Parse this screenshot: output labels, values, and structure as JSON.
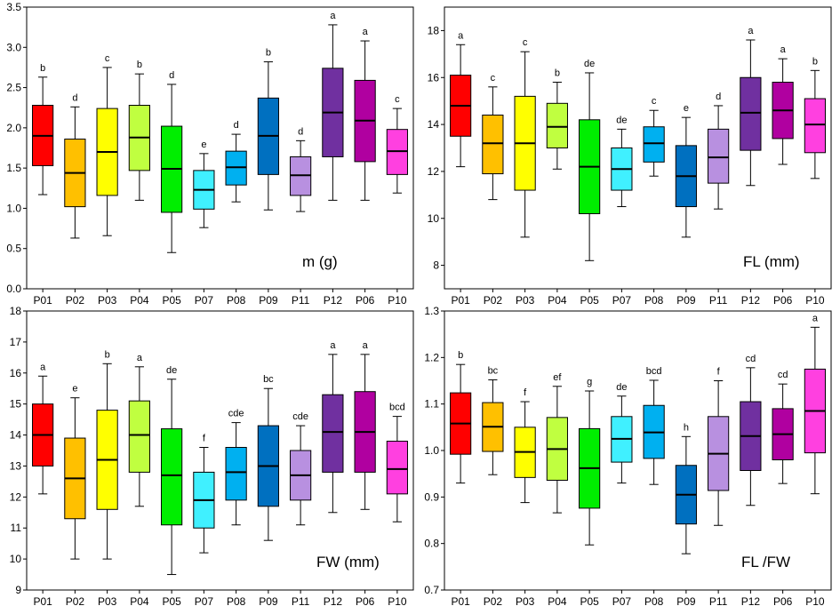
{
  "chart_data": [
    {
      "type": "box",
      "title": "m (g)",
      "categories": [
        "P01",
        "P02",
        "P03",
        "P04",
        "P05",
        "P07",
        "P08",
        "P09",
        "P11",
        "P12",
        "P06",
        "P10"
      ],
      "ylim": [
        0.0,
        3.5
      ],
      "yticks": [
        "0.0",
        "0.5",
        "1.0",
        "1.5",
        "2.0",
        "2.5",
        "3.0",
        "3.5"
      ],
      "ytick_values": [
        0.0,
        0.5,
        1.0,
        1.5,
        2.0,
        2.5,
        3.0,
        3.5
      ],
      "boxes": [
        {
          "min": 1.17,
          "q1": 1.53,
          "median": 1.9,
          "q3": 2.28,
          "max": 2.63,
          "label": "b",
          "color": "#ff0000"
        },
        {
          "min": 0.63,
          "q1": 1.02,
          "median": 1.44,
          "q3": 1.86,
          "max": 2.26,
          "label": "d",
          "color": "#ffc000"
        },
        {
          "min": 0.66,
          "q1": 1.16,
          "median": 1.7,
          "q3": 2.24,
          "max": 2.75,
          "label": "c",
          "color": "#ffff00"
        },
        {
          "min": 1.1,
          "q1": 1.47,
          "median": 1.88,
          "q3": 2.28,
          "max": 2.67,
          "label": "b",
          "color": "#c0ff40"
        },
        {
          "min": 0.45,
          "q1": 0.95,
          "median": 1.49,
          "q3": 2.02,
          "max": 2.54,
          "label": "d",
          "color": "#00ee00"
        },
        {
          "min": 0.76,
          "q1": 0.99,
          "median": 1.23,
          "q3": 1.47,
          "max": 1.68,
          "label": "e",
          "color": "#40f0ff"
        },
        {
          "min": 1.08,
          "q1": 1.29,
          "median": 1.51,
          "q3": 1.71,
          "max": 1.92,
          "label": "d",
          "color": "#00b0f0"
        },
        {
          "min": 0.98,
          "q1": 1.42,
          "median": 1.9,
          "q3": 2.37,
          "max": 2.82,
          "label": "b",
          "color": "#0070c0"
        },
        {
          "min": 0.96,
          "q1": 1.16,
          "median": 1.41,
          "q3": 1.64,
          "max": 1.84,
          "label": "d",
          "color": "#b890e0"
        },
        {
          "min": 1.1,
          "q1": 1.64,
          "median": 2.19,
          "q3": 2.74,
          "max": 3.28,
          "label": "a",
          "color": "#7030a0"
        },
        {
          "min": 1.1,
          "q1": 1.58,
          "median": 2.09,
          "q3": 2.59,
          "max": 3.08,
          "label": "a",
          "color": "#b000a0"
        },
        {
          "min": 1.19,
          "q1": 1.42,
          "median": 1.71,
          "q3": 1.98,
          "max": 2.24,
          "label": "c",
          "color": "#ff40e0"
        }
      ]
    },
    {
      "type": "box",
      "title": "FL (mm)",
      "categories": [
        "P01",
        "P02",
        "P03",
        "P04",
        "P05",
        "P07",
        "P08",
        "P09",
        "P11",
        "P12",
        "P06",
        "P10"
      ],
      "ylim": [
        7.0,
        19.0
      ],
      "yticks": [
        "8",
        "10",
        "12",
        "14",
        "16",
        "18"
      ],
      "ytick_values": [
        8,
        10,
        12,
        14,
        16,
        18
      ],
      "boxes": [
        {
          "min": 12.2,
          "q1": 13.5,
          "median": 14.8,
          "q3": 16.1,
          "max": 17.4,
          "label": "a",
          "color": "#ff0000"
        },
        {
          "min": 10.8,
          "q1": 11.9,
          "median": 13.2,
          "q3": 14.4,
          "max": 15.6,
          "label": "c",
          "color": "#ffc000"
        },
        {
          "min": 9.2,
          "q1": 11.2,
          "median": 13.2,
          "q3": 15.2,
          "max": 17.1,
          "label": "c",
          "color": "#ffff00"
        },
        {
          "min": 12.1,
          "q1": 13.0,
          "median": 13.9,
          "q3": 14.9,
          "max": 15.8,
          "label": "b",
          "color": "#c0ff40"
        },
        {
          "min": 8.2,
          "q1": 10.2,
          "median": 12.2,
          "q3": 14.2,
          "max": 16.2,
          "label": "de",
          "color": "#00ee00"
        },
        {
          "min": 10.5,
          "q1": 11.2,
          "median": 12.1,
          "q3": 13.0,
          "max": 13.8,
          "label": "de",
          "color": "#40f0ff"
        },
        {
          "min": 11.8,
          "q1": 12.4,
          "median": 13.2,
          "q3": 13.9,
          "max": 14.6,
          "label": "c",
          "color": "#00b0f0"
        },
        {
          "min": 9.2,
          "q1": 10.5,
          "median": 11.8,
          "q3": 13.1,
          "max": 14.3,
          "label": "e",
          "color": "#0070c0"
        },
        {
          "min": 10.4,
          "q1": 11.5,
          "median": 12.6,
          "q3": 13.8,
          "max": 14.8,
          "label": "d",
          "color": "#b890e0"
        },
        {
          "min": 11.4,
          "q1": 12.9,
          "median": 14.5,
          "q3": 16.0,
          "max": 17.6,
          "label": "a",
          "color": "#7030a0"
        },
        {
          "min": 12.3,
          "q1": 13.4,
          "median": 14.6,
          "q3": 15.8,
          "max": 16.8,
          "label": "a",
          "color": "#b000a0"
        },
        {
          "min": 11.7,
          "q1": 12.8,
          "median": 14.0,
          "q3": 15.1,
          "max": 16.3,
          "label": "b",
          "color": "#ff40e0"
        }
      ]
    },
    {
      "type": "box",
      "title": "FW (mm)",
      "categories": [
        "P01",
        "P02",
        "P03",
        "P04",
        "P05",
        "P07",
        "P08",
        "P09",
        "P11",
        "P12",
        "P06",
        "P10"
      ],
      "ylim": [
        9.0,
        18.0
      ],
      "yticks": [
        "9",
        "10",
        "11",
        "12",
        "13",
        "14",
        "15",
        "16",
        "17",
        "18"
      ],
      "ytick_values": [
        9,
        10,
        11,
        12,
        13,
        14,
        15,
        16,
        17,
        18
      ],
      "boxes": [
        {
          "min": 12.1,
          "q1": 13.0,
          "median": 14.0,
          "q3": 15.0,
          "max": 15.9,
          "label": "a",
          "color": "#ff0000"
        },
        {
          "min": 10.0,
          "q1": 11.3,
          "median": 12.6,
          "q3": 13.9,
          "max": 15.2,
          "label": "e",
          "color": "#ffc000"
        },
        {
          "min": 10.0,
          "q1": 11.6,
          "median": 13.2,
          "q3": 14.8,
          "max": 16.3,
          "label": "b",
          "color": "#ffff00"
        },
        {
          "min": 11.7,
          "q1": 12.8,
          "median": 14.0,
          "q3": 15.1,
          "max": 16.2,
          "label": "a",
          "color": "#c0ff40"
        },
        {
          "min": 9.5,
          "q1": 11.1,
          "median": 12.7,
          "q3": 14.2,
          "max": 15.8,
          "label": "de",
          "color": "#00ee00"
        },
        {
          "min": 10.2,
          "q1": 11.0,
          "median": 11.9,
          "q3": 12.8,
          "max": 13.6,
          "label": "f",
          "color": "#40f0ff"
        },
        {
          "min": 11.1,
          "q1": 11.9,
          "median": 12.8,
          "q3": 13.6,
          "max": 14.4,
          "label": "cde",
          "color": "#00b0f0"
        },
        {
          "min": 10.6,
          "q1": 11.7,
          "median": 13.0,
          "q3": 14.3,
          "max": 15.5,
          "label": "bc",
          "color": "#0070c0"
        },
        {
          "min": 11.1,
          "q1": 11.9,
          "median": 12.7,
          "q3": 13.5,
          "max": 14.3,
          "label": "cde",
          "color": "#b890e0"
        },
        {
          "min": 11.5,
          "q1": 12.8,
          "median": 14.1,
          "q3": 15.3,
          "max": 16.6,
          "label": "a",
          "color": "#7030a0"
        },
        {
          "min": 11.6,
          "q1": 12.8,
          "median": 14.1,
          "q3": 15.4,
          "max": 16.6,
          "label": "a",
          "color": "#b000a0"
        },
        {
          "min": 11.2,
          "q1": 12.1,
          "median": 12.9,
          "q3": 13.8,
          "max": 14.6,
          "label": "bcd",
          "color": "#ff40e0"
        }
      ]
    },
    {
      "type": "box",
      "title": "FL /FW",
      "categories": [
        "P01",
        "P02",
        "P03",
        "P04",
        "P05",
        "P07",
        "P08",
        "P09",
        "P11",
        "P12",
        "P06",
        "P10"
      ],
      "ylim": [
        0.7,
        1.3
      ],
      "yticks": [
        "0.7",
        "0.8",
        "0.9",
        "1.0",
        "1.1",
        "1.2",
        "1.3"
      ],
      "ytick_values": [
        0.7,
        0.8,
        0.9,
        1.0,
        1.1,
        1.2,
        1.3
      ],
      "boxes": [
        {
          "min": 0.93,
          "q1": 0.992,
          "median": 1.058,
          "q3": 1.124,
          "max": 1.185,
          "label": "b",
          "color": "#ff0000"
        },
        {
          "min": 0.948,
          "q1": 0.998,
          "median": 1.051,
          "q3": 1.103,
          "max": 1.152,
          "label": "bc",
          "color": "#ffc000"
        },
        {
          "min": 0.888,
          "q1": 0.942,
          "median": 0.997,
          "q3": 1.05,
          "max": 1.105,
          "label": "f",
          "color": "#ffff00"
        },
        {
          "min": 0.866,
          "q1": 0.936,
          "median": 1.003,
          "q3": 1.071,
          "max": 1.138,
          "label": "ef",
          "color": "#c0ff40"
        },
        {
          "min": 0.797,
          "q1": 0.876,
          "median": 0.962,
          "q3": 1.047,
          "max": 1.128,
          "label": "g",
          "color": "#00ee00"
        },
        {
          "min": 0.93,
          "q1": 0.975,
          "median": 1.025,
          "q3": 1.073,
          "max": 1.117,
          "label": "de",
          "color": "#40f0ff"
        },
        {
          "min": 0.927,
          "q1": 0.983,
          "median": 1.039,
          "q3": 1.097,
          "max": 1.151,
          "label": "bcd",
          "color": "#00b0f0"
        },
        {
          "min": 0.778,
          "q1": 0.842,
          "median": 0.905,
          "q3": 0.968,
          "max": 1.03,
          "label": "h",
          "color": "#0070c0"
        },
        {
          "min": 0.839,
          "q1": 0.914,
          "median": 0.993,
          "q3": 1.073,
          "max": 1.15,
          "label": "f",
          "color": "#b890e0"
        },
        {
          "min": 0.882,
          "q1": 0.957,
          "median": 1.031,
          "q3": 1.105,
          "max": 1.178,
          "label": "cd",
          "color": "#7030a0"
        },
        {
          "min": 0.929,
          "q1": 0.98,
          "median": 1.035,
          "q3": 1.09,
          "max": 1.143,
          "label": "cd",
          "color": "#b000a0"
        },
        {
          "min": 0.907,
          "q1": 0.995,
          "median": 1.085,
          "q3": 1.175,
          "max": 1.265,
          "label": "a",
          "color": "#ff40e0"
        }
      ]
    }
  ]
}
